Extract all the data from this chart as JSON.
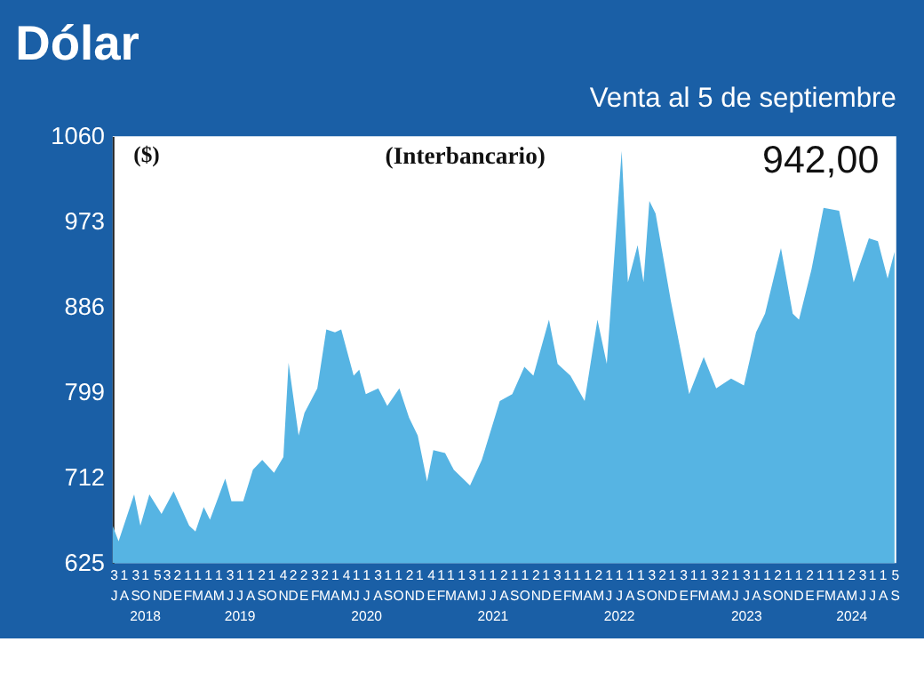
{
  "chart_data": {
    "type": "area",
    "title": "Dólar",
    "subtitle": "Venta al 5 de septiembre",
    "ylabel": "($)",
    "annotations": [
      "(Interbancario)",
      "942,00"
    ],
    "series": [
      {
        "color": "#56b4e3",
        "x": [
          "2018-07-01",
          "2018-07-18",
          "2018-09-01",
          "2018-09-19",
          "2018-10-15",
          "2018-11-19",
          "2018-12-24",
          "2019-02-07",
          "2019-02-25",
          "2019-03-21",
          "2019-04-08",
          "2019-05-22",
          "2019-06-09",
          "2019-07-13",
          "2019-08-10",
          "2019-09-06",
          "2019-10-10",
          "2019-11-06",
          "2019-11-21",
          "2019-12-20",
          "2020-01-06",
          "2020-02-12",
          "2020-03-09",
          "2020-04-03",
          "2020-04-21",
          "2020-05-27",
          "2020-06-12",
          "2020-07-01",
          "2020-08-06",
          "2020-09-01",
          "2020-10-06",
          "2020-11-03",
          "2020-11-28",
          "2020-12-25",
          "2021-01-12",
          "2021-02-15",
          "2021-03-12",
          "2021-04-28",
          "2021-06-01",
          "2021-07-23",
          "2021-08-28",
          "2021-10-02",
          "2021-10-28",
          "2021-12-12",
          "2022-01-06",
          "2022-02-12",
          "2022-03-25",
          "2022-05-01",
          "2022-05-28",
          "2022-07-10",
          "2022-07-28",
          "2022-08-25",
          "2022-09-11",
          "2022-09-28",
          "2022-10-16",
          "2022-11-29",
          "2023-01-21",
          "2023-03-04",
          "2023-04-09",
          "2023-05-22",
          "2023-06-28",
          "2023-08-02",
          "2023-08-28",
          "2023-10-13",
          "2023-11-16",
          "2023-12-04",
          "2024-01-09",
          "2024-02-13",
          "2024-03-29",
          "2024-05-10",
          "2024-06-23",
          "2024-07-19",
          "2024-08-16",
          "2024-09-05"
        ],
        "values": [
          663,
          647,
          695,
          663,
          695,
          675,
          698,
          663,
          657,
          682,
          669,
          711,
          688,
          688,
          720,
          730,
          717,
          733,
          829,
          755,
          778,
          803,
          863,
          860,
          863,
          816,
          822,
          797,
          803,
          785,
          803,
          773,
          755,
          708,
          740,
          737,
          720,
          704,
          730,
          790,
          797,
          825,
          816,
          873,
          828,
          816,
          790,
          873,
          828,
          1045,
          911,
          949,
          911,
          994,
          981,
          892,
          797,
          835,
          803,
          813,
          806,
          860,
          879,
          946,
          879,
          873,
          924,
          987,
          984,
          911,
          956,
          953,
          915,
          942
        ]
      }
    ],
    "ylim": [
      625,
      1060
    ],
    "yticks": [
      625,
      712,
      799,
      886,
      973,
      1060
    ],
    "xlim": [
      "2018-07-01",
      "2024-09-10"
    ],
    "xticks": [
      {
        "value": "2018-07-03",
        "label": "3\nJ"
      },
      {
        "value": "2018-08-01",
        "label": "1\nA"
      },
      {
        "value": "2018-09-03",
        "label": "3\nS"
      },
      {
        "value": "2018-10-01",
        "label": "1\nO\n2018"
      },
      {
        "value": "2018-11-05",
        "label": "5\nN"
      },
      {
        "value": "2018-12-03",
        "label": "3\nD"
      },
      {
        "value": "2019-01-02",
        "label": "2\nE"
      },
      {
        "value": "2019-02-01",
        "label": "1\nF"
      },
      {
        "value": "2019-03-01",
        "label": "1\nM"
      },
      {
        "value": "2019-04-01",
        "label": "1\nA"
      },
      {
        "value": "2019-05-01",
        "label": "1\nM"
      },
      {
        "value": "2019-06-03",
        "label": "3\nJ"
      },
      {
        "value": "2019-07-01",
        "label": "1\nJ\n2019"
      },
      {
        "value": "2019-08-01",
        "label": "1\nA"
      },
      {
        "value": "2019-09-02",
        "label": "2\nS"
      },
      {
        "value": "2019-10-01",
        "label": "1\nO"
      },
      {
        "value": "2019-11-04",
        "label": "4\nN"
      },
      {
        "value": "2019-12-02",
        "label": "2\nD"
      },
      {
        "value": "2020-01-02",
        "label": "2\nE"
      },
      {
        "value": "2020-02-03",
        "label": "3\nF"
      },
      {
        "value": "2020-03-02",
        "label": "2\nM"
      },
      {
        "value": "2020-04-01",
        "label": "1\nA"
      },
      {
        "value": "2020-05-04",
        "label": "4\nM"
      },
      {
        "value": "2020-06-01",
        "label": "1\nJ"
      },
      {
        "value": "2020-07-01",
        "label": "1\nJ\n2020"
      },
      {
        "value": "2020-08-03",
        "label": "3\nA"
      },
      {
        "value": "2020-09-01",
        "label": "1\nS"
      },
      {
        "value": "2020-10-01",
        "label": "1\nO"
      },
      {
        "value": "2020-11-02",
        "label": "2\nN"
      },
      {
        "value": "2020-12-01",
        "label": "1\nD"
      },
      {
        "value": "2021-01-04",
        "label": "4\nE"
      },
      {
        "value": "2021-02-01",
        "label": "1\nF"
      },
      {
        "value": "2021-03-01",
        "label": "1\nM"
      },
      {
        "value": "2021-04-01",
        "label": "1\nA"
      },
      {
        "value": "2021-05-03",
        "label": "3\nM"
      },
      {
        "value": "2021-06-01",
        "label": "1\nJ"
      },
      {
        "value": "2021-07-01",
        "label": "1\nJ\n2021"
      },
      {
        "value": "2021-08-02",
        "label": "2\nA"
      },
      {
        "value": "2021-09-01",
        "label": "1\nS"
      },
      {
        "value": "2021-10-01",
        "label": "1\nO"
      },
      {
        "value": "2021-11-02",
        "label": "2\nN"
      },
      {
        "value": "2021-12-01",
        "label": "1\nD"
      },
      {
        "value": "2022-01-03",
        "label": "3\nE"
      },
      {
        "value": "2022-02-01",
        "label": "1\nF"
      },
      {
        "value": "2022-03-01",
        "label": "1\nM"
      },
      {
        "value": "2022-04-01",
        "label": "1\nA"
      },
      {
        "value": "2022-05-02",
        "label": "2\nM"
      },
      {
        "value": "2022-06-01",
        "label": "1\nJ"
      },
      {
        "value": "2022-07-01",
        "label": "1\nJ\n2022"
      },
      {
        "value": "2022-08-01",
        "label": "1\nA"
      },
      {
        "value": "2022-09-01",
        "label": "1\nS"
      },
      {
        "value": "2022-10-03",
        "label": "3\nO"
      },
      {
        "value": "2022-11-02",
        "label": "2\nN"
      },
      {
        "value": "2022-12-01",
        "label": "1\nD"
      },
      {
        "value": "2023-01-03",
        "label": "3\nE"
      },
      {
        "value": "2023-02-01",
        "label": "1\nF"
      },
      {
        "value": "2023-03-01",
        "label": "1\nM"
      },
      {
        "value": "2023-04-03",
        "label": "3\nA"
      },
      {
        "value": "2023-05-02",
        "label": "2\nM"
      },
      {
        "value": "2023-06-01",
        "label": "1\nJ"
      },
      {
        "value": "2023-07-03",
        "label": "3\nJ\n2023"
      },
      {
        "value": "2023-08-01",
        "label": "1\nA"
      },
      {
        "value": "2023-09-01",
        "label": "1\nS"
      },
      {
        "value": "2023-10-02",
        "label": "2\nO"
      },
      {
        "value": "2023-11-01",
        "label": "1\nN"
      },
      {
        "value": "2023-12-01",
        "label": "1\nD"
      },
      {
        "value": "2024-01-02",
        "label": "2\nE"
      },
      {
        "value": "2024-02-01",
        "label": "1\nF"
      },
      {
        "value": "2024-03-01",
        "label": "1\nM"
      },
      {
        "value": "2024-04-01",
        "label": "1\nA"
      },
      {
        "value": "2024-05-02",
        "label": "2\nM\n2024"
      },
      {
        "value": "2024-06-03",
        "label": "3\nJ"
      },
      {
        "value": "2024-07-01",
        "label": "1\nJ"
      },
      {
        "value": "2024-08-01",
        "label": "1\nA"
      },
      {
        "value": "2024-09-05",
        "label": "5\nS"
      }
    ]
  }
}
